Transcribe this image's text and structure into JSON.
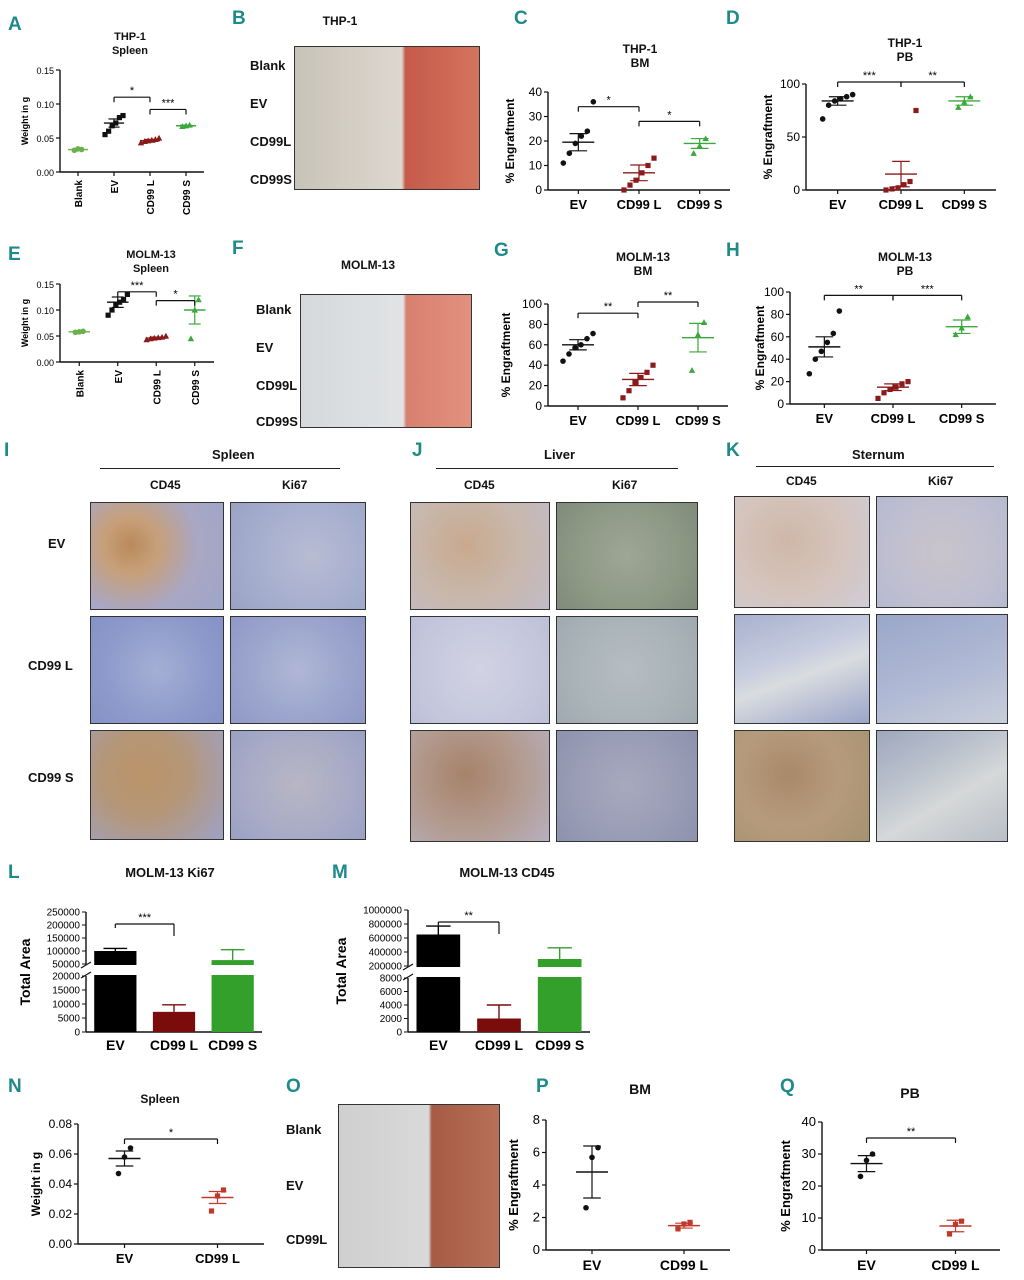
{
  "panels": [
    {
      "id": "A",
      "label": "A",
      "title": [
        "THP-1",
        "Spleen"
      ],
      "ylabel": "Weight in g",
      "xlabels_rotated": true
    },
    {
      "id": "B",
      "label": "B",
      "title": "THP-1",
      "rows": [
        "Blank",
        "EV",
        "CD99L",
        "CD99S"
      ]
    },
    {
      "id": "C",
      "label": "C",
      "title": [
        "THP-1",
        "BM"
      ],
      "ylabel": "% Engraftment"
    },
    {
      "id": "D",
      "label": "D",
      "title": [
        "THP-1",
        "PB"
      ],
      "ylabel": "% Engraftment"
    },
    {
      "id": "E",
      "label": "E",
      "title": [
        "MOLM-13",
        "Spleen"
      ],
      "ylabel": "Weight in g"
    },
    {
      "id": "F",
      "label": "F",
      "title": "MOLM-13",
      "rows": [
        "Blank",
        "EV",
        "CD99L",
        "CD99S"
      ]
    },
    {
      "id": "G",
      "label": "G",
      "title": [
        "MOLM-13",
        "BM"
      ],
      "ylabel": "% Engraftment"
    },
    {
      "id": "H",
      "label": "H",
      "title": [
        "MOLM-13",
        "PB"
      ],
      "ylabel": "% Engraftment"
    },
    {
      "id": "I",
      "label": "I",
      "title": "Spleen"
    },
    {
      "id": "J",
      "label": "J",
      "title": "Liver"
    },
    {
      "id": "K",
      "label": "K",
      "title": "Sternum"
    },
    {
      "id": "L",
      "label": "L",
      "title": "MOLM-13 Ki67",
      "ylabel": "Total Area"
    },
    {
      "id": "M",
      "label": "M",
      "title": "MOLM-13 CD45",
      "ylabel": "Total Area"
    },
    {
      "id": "N",
      "label": "N",
      "title": "Spleen",
      "ylabel": "Weight in g"
    },
    {
      "id": "O",
      "label": "O",
      "rows": [
        "Blank",
        "EV",
        "CD99L"
      ]
    },
    {
      "id": "P",
      "label": "P",
      "title": "BM",
      "ylabel": "% Engraftment"
    },
    {
      "id": "Q",
      "label": "Q",
      "title": "PB",
      "ylabel": "% Engraftment"
    }
  ],
  "histology": {
    "columns": [
      "CD45",
      "Ki67"
    ],
    "rows": [
      "EV",
      "CD99 L",
      "CD99 S"
    ]
  },
  "chart_data": [
    {
      "id": "A",
      "type": "scatter",
      "categories": [
        "Blank",
        "EV",
        "CD99 L",
        "CD99 S"
      ],
      "ylim": [
        0,
        0.15
      ],
      "yticks": [
        "0.00",
        "0.05",
        "0.10",
        "0.15"
      ],
      "colors": [
        "#6ab04c",
        "#111111",
        "#8b1a1a",
        "#3aa83a"
      ],
      "points": [
        [
          0.032,
          0.034,
          0.033
        ],
        [
          0.055,
          0.06,
          0.068,
          0.072,
          0.08,
          0.083
        ],
        [
          0.043,
          0.045,
          0.046,
          0.047,
          0.048,
          0.05
        ],
        [
          0.067,
          0.068,
          0.069
        ]
      ],
      "means": [
        0.033,
        0.072,
        0.046,
        0.068
      ],
      "sem": [
        0.001,
        0.006,
        0.002,
        0.001
      ],
      "sig": [
        {
          "from": 1,
          "to": 2,
          "text": "*",
          "y": 0.11
        },
        {
          "from": 2,
          "to": 3,
          "text": "***",
          "y": 0.092
        }
      ]
    },
    {
      "id": "C",
      "type": "scatter",
      "categories": [
        "EV",
        "CD99 L",
        "CD99 S"
      ],
      "ylim": [
        0,
        40
      ],
      "yticks": [
        "0",
        "10",
        "20",
        "30",
        "40"
      ],
      "colors": [
        "#111111",
        "#8b1a1a",
        "#3aa83a"
      ],
      "points": [
        [
          11,
          15,
          19,
          22,
          24,
          36
        ],
        [
          0,
          2,
          4,
          7,
          10,
          13
        ],
        [
          15,
          18,
          21
        ]
      ],
      "means": [
        19.5,
        7,
        19
      ],
      "sem": [
        3.5,
        3.2,
        2
      ],
      "sig": [
        {
          "from": 0,
          "to": 1,
          "text": "*",
          "y": 34
        },
        {
          "from": 1,
          "to": 2,
          "text": "*",
          "y": 28
        }
      ]
    },
    {
      "id": "D",
      "type": "scatter",
      "categories": [
        "EV",
        "CD99 L",
        "CD99 S"
      ],
      "ylim": [
        0,
        100
      ],
      "yticks": [
        "0",
        "50",
        "100"
      ],
      "colors": [
        "#111111",
        "#8b1a1a",
        "#3aa83a"
      ],
      "points": [
        [
          67,
          80,
          84,
          86,
          88,
          90
        ],
        [
          0,
          1,
          2,
          5,
          8,
          75
        ],
        [
          78,
          83,
          88
        ]
      ],
      "means": [
        84,
        15,
        84
      ],
      "sem": [
        4,
        12,
        4
      ],
      "sig": [
        {
          "from": 0,
          "to": 1,
          "text": "***",
          "y": 148
        },
        {
          "from": 1,
          "to": 2,
          "text": "**",
          "y": 126
        }
      ]
    },
    {
      "id": "E",
      "type": "scatter",
      "categories": [
        "Blank",
        "EV",
        "CD99 L",
        "CD99 S"
      ],
      "ylim": [
        0,
        0.15
      ],
      "yticks": [
        "0.00",
        "0.05",
        "0.10",
        "0.15"
      ],
      "colors": [
        "#6ab04c",
        "#111111",
        "#8b1a1a",
        "#3aa83a"
      ],
      "points": [
        [
          0.057,
          0.058,
          0.059
        ],
        [
          0.09,
          0.1,
          0.11,
          0.115,
          0.12,
          0.13
        ],
        [
          0.043,
          0.045,
          0.046,
          0.047,
          0.048,
          0.05
        ],
        [
          0.045,
          0.1,
          0.12
        ]
      ],
      "means": [
        0.058,
        0.115,
        0.046,
        0.1
      ],
      "sem": [
        0.001,
        0.01,
        0.002,
        0.027
      ],
      "sig": [
        {
          "from": 1,
          "to": 2,
          "text": "***",
          "y": 0.135
        },
        {
          "from": 2,
          "to": 3,
          "text": "*",
          "y": 0.118
        }
      ]
    },
    {
      "id": "G",
      "type": "scatter",
      "categories": [
        "EV",
        "CD99 L",
        "CD99 S"
      ],
      "ylim": [
        0,
        100
      ],
      "yticks": [
        "0",
        "20",
        "40",
        "60",
        "80",
        "100"
      ],
      "colors": [
        "#111111",
        "#8b1a1a",
        "#3aa83a"
      ],
      "points": [
        [
          44,
          51,
          57,
          60,
          66,
          71
        ],
        [
          8,
          15,
          23,
          28,
          33,
          40
        ],
        [
          35,
          70,
          82
        ]
      ],
      "means": [
        60,
        26,
        67
      ],
      "sem": [
        5,
        6,
        14
      ],
      "sig": [
        {
          "from": 0,
          "to": 1,
          "text": "**",
          "y": 91
        },
        {
          "from": 1,
          "to": 2,
          "text": "**",
          "y": 103
        }
      ]
    },
    {
      "id": "H",
      "type": "scatter",
      "categories": [
        "EV",
        "CD99 L",
        "CD99 S"
      ],
      "ylim": [
        0,
        100
      ],
      "yticks": [
        "0",
        "20",
        "40",
        "60",
        "80",
        "100"
      ],
      "colors": [
        "#111111",
        "#8b1a1a",
        "#3aa83a"
      ],
      "points": [
        [
          27,
          40,
          47,
          55,
          63,
          83
        ],
        [
          5,
          10,
          13,
          15,
          18,
          20
        ],
        [
          62,
          68,
          78
        ]
      ],
      "means": [
        51,
        15,
        69
      ],
      "sem": [
        9,
        3,
        6
      ],
      "sig": [
        {
          "from": 0,
          "to": 1,
          "text": "**",
          "y": 97
        },
        {
          "from": 1,
          "to": 2,
          "text": "***",
          "y": 97
        }
      ]
    },
    {
      "id": "L",
      "type": "bar",
      "categories": [
        "EV",
        "CD99 L",
        "CD99 S"
      ],
      "colors": [
        "#000000",
        "#7a0c0c",
        "#33a02c"
      ],
      "values": [
        100000,
        7200,
        65000
      ],
      "errors": [
        10000,
        2500,
        40000
      ],
      "yticks_upper": [
        "50000",
        "100000",
        "150000",
        "200000",
        "250000"
      ],
      "yticks_lower": [
        "0",
        "5000",
        "10000",
        "15000",
        "20000"
      ],
      "sig": [
        {
          "from": 0,
          "to": 1,
          "text": "***"
        }
      ]
    },
    {
      "id": "M",
      "type": "bar",
      "categories": [
        "EV",
        "CD99 L",
        "CD99 S"
      ],
      "colors": [
        "#000000",
        "#7a0c0c",
        "#33a02c"
      ],
      "values": [
        650000,
        2000,
        300000
      ],
      "errors": [
        120000,
        2000,
        160000
      ],
      "yticks_upper": [
        "200000",
        "400000",
        "600000",
        "800000",
        "1000000"
      ],
      "yticks_lower": [
        "0",
        "2000",
        "4000",
        "6000",
        "8000"
      ],
      "sig": [
        {
          "from": 0,
          "to": 1,
          "text": "**"
        }
      ]
    },
    {
      "id": "N",
      "type": "scatter",
      "categories": [
        "EV",
        "CD99 L"
      ],
      "ylim": [
        0,
        0.08
      ],
      "yticks": [
        "0.00",
        "0.02",
        "0.04",
        "0.06",
        "0.08"
      ],
      "colors": [
        "#111111",
        "#c0392b"
      ],
      "points": [
        [
          0.047,
          0.058,
          0.064
        ],
        [
          0.022,
          0.032,
          0.036
        ]
      ],
      "means": [
        0.057,
        0.031
      ],
      "sem": [
        0.005,
        0.004
      ],
      "sig": [
        {
          "from": 0,
          "to": 1,
          "text": "*",
          "y": 0.07
        }
      ]
    },
    {
      "id": "P",
      "type": "scatter",
      "categories": [
        "EV",
        "CD99 L"
      ],
      "ylim": [
        0,
        8
      ],
      "yticks": [
        "0",
        "2",
        "4",
        "6",
        "8"
      ],
      "colors": [
        "#111111",
        "#c0392b"
      ],
      "points": [
        [
          2.6,
          5.7,
          6.3
        ],
        [
          1.3,
          1.6,
          1.7
        ]
      ],
      "means": [
        4.8,
        1.5
      ],
      "sem": [
        1.6,
        0.15
      ],
      "sig": []
    },
    {
      "id": "Q",
      "type": "scatter",
      "categories": [
        "EV",
        "CD99 L"
      ],
      "ylim": [
        0,
        40
      ],
      "yticks": [
        "0",
        "10",
        "20",
        "30",
        "40"
      ],
      "colors": [
        "#111111",
        "#c0392b"
      ],
      "points": [
        [
          23,
          28,
          30
        ],
        [
          5,
          8,
          9
        ]
      ],
      "means": [
        27,
        7.5
      ],
      "sem": [
        2.5,
        1.8
      ],
      "sig": [
        {
          "from": 0,
          "to": 1,
          "text": "**",
          "y": 35
        }
      ]
    }
  ]
}
